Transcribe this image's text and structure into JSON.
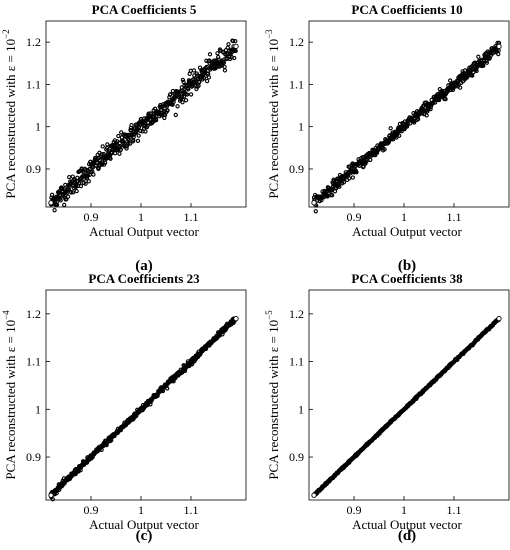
{
  "chart_data": [
    {
      "type": "scatter",
      "panel_label": "(a)",
      "title": "PCA Coefficients 5",
      "xlabel": "Actual Output vector",
      "ylabel_prefix": "PCA reconstructed with ε = 10",
      "ylabel_exponent": "−2",
      "xlim": [
        0.81,
        1.21
      ],
      "ylim": [
        0.81,
        1.25
      ],
      "xticks": [
        "0.9",
        "1",
        "1.1"
      ],
      "yticks": [
        "0.9",
        "1",
        "1.1",
        "1.2"
      ],
      "series": [
        {
          "x": [
            0.82,
            1.19
          ],
          "y": [
            0.82,
            1.19
          ],
          "spread": 0.012
        }
      ],
      "marker_color": "#000000"
    },
    {
      "type": "scatter",
      "panel_label": "(b)",
      "title": "PCA Coefficients 10",
      "xlabel": "Actual Output vector",
      "ylabel_prefix": "PCA reconstructed with ε = 10",
      "ylabel_exponent": "−3",
      "xlim": [
        0.81,
        1.21
      ],
      "ylim": [
        0.81,
        1.25
      ],
      "xticks": [
        "0.9",
        "1",
        "1.1"
      ],
      "yticks": [
        "0.9",
        "1",
        "1.1",
        "1.2"
      ],
      "series": [
        {
          "x": [
            0.82,
            1.19
          ],
          "y": [
            0.82,
            1.19
          ],
          "spread": 0.007
        }
      ],
      "marker_color": "#000000"
    },
    {
      "type": "scatter",
      "panel_label": "(c)",
      "title": "PCA Coefficients 23",
      "xlabel": "Actual Output vector",
      "ylabel_prefix": "PCA reconstructed with ε = 10",
      "ylabel_exponent": "−4",
      "xlim": [
        0.81,
        1.21
      ],
      "ylim": [
        0.81,
        1.25
      ],
      "xticks": [
        "0.9",
        "1",
        "1.1"
      ],
      "yticks": [
        "0.9",
        "1",
        "1.1",
        "1.2"
      ],
      "series": [
        {
          "x": [
            0.82,
            1.19
          ],
          "y": [
            0.82,
            1.19
          ],
          "spread": 0.003
        }
      ],
      "marker_color": "#000000"
    },
    {
      "type": "scatter",
      "panel_label": "(d)",
      "title": "PCA Coefficients 38",
      "xlabel": "Actual Output vector",
      "ylabel_prefix": "PCA reconstructed with ε = 10",
      "ylabel_exponent": "−5",
      "xlim": [
        0.81,
        1.21
      ],
      "ylim": [
        0.81,
        1.25
      ],
      "xticks": [
        "0.9",
        "1",
        "1.1"
      ],
      "yticks": [
        "0.9",
        "1",
        "1.1",
        "1.2"
      ],
      "series": [
        {
          "x": [
            0.82,
            1.19
          ],
          "y": [
            0.82,
            1.19
          ],
          "spread": 0.001
        }
      ],
      "marker_color": "#000000"
    }
  ]
}
